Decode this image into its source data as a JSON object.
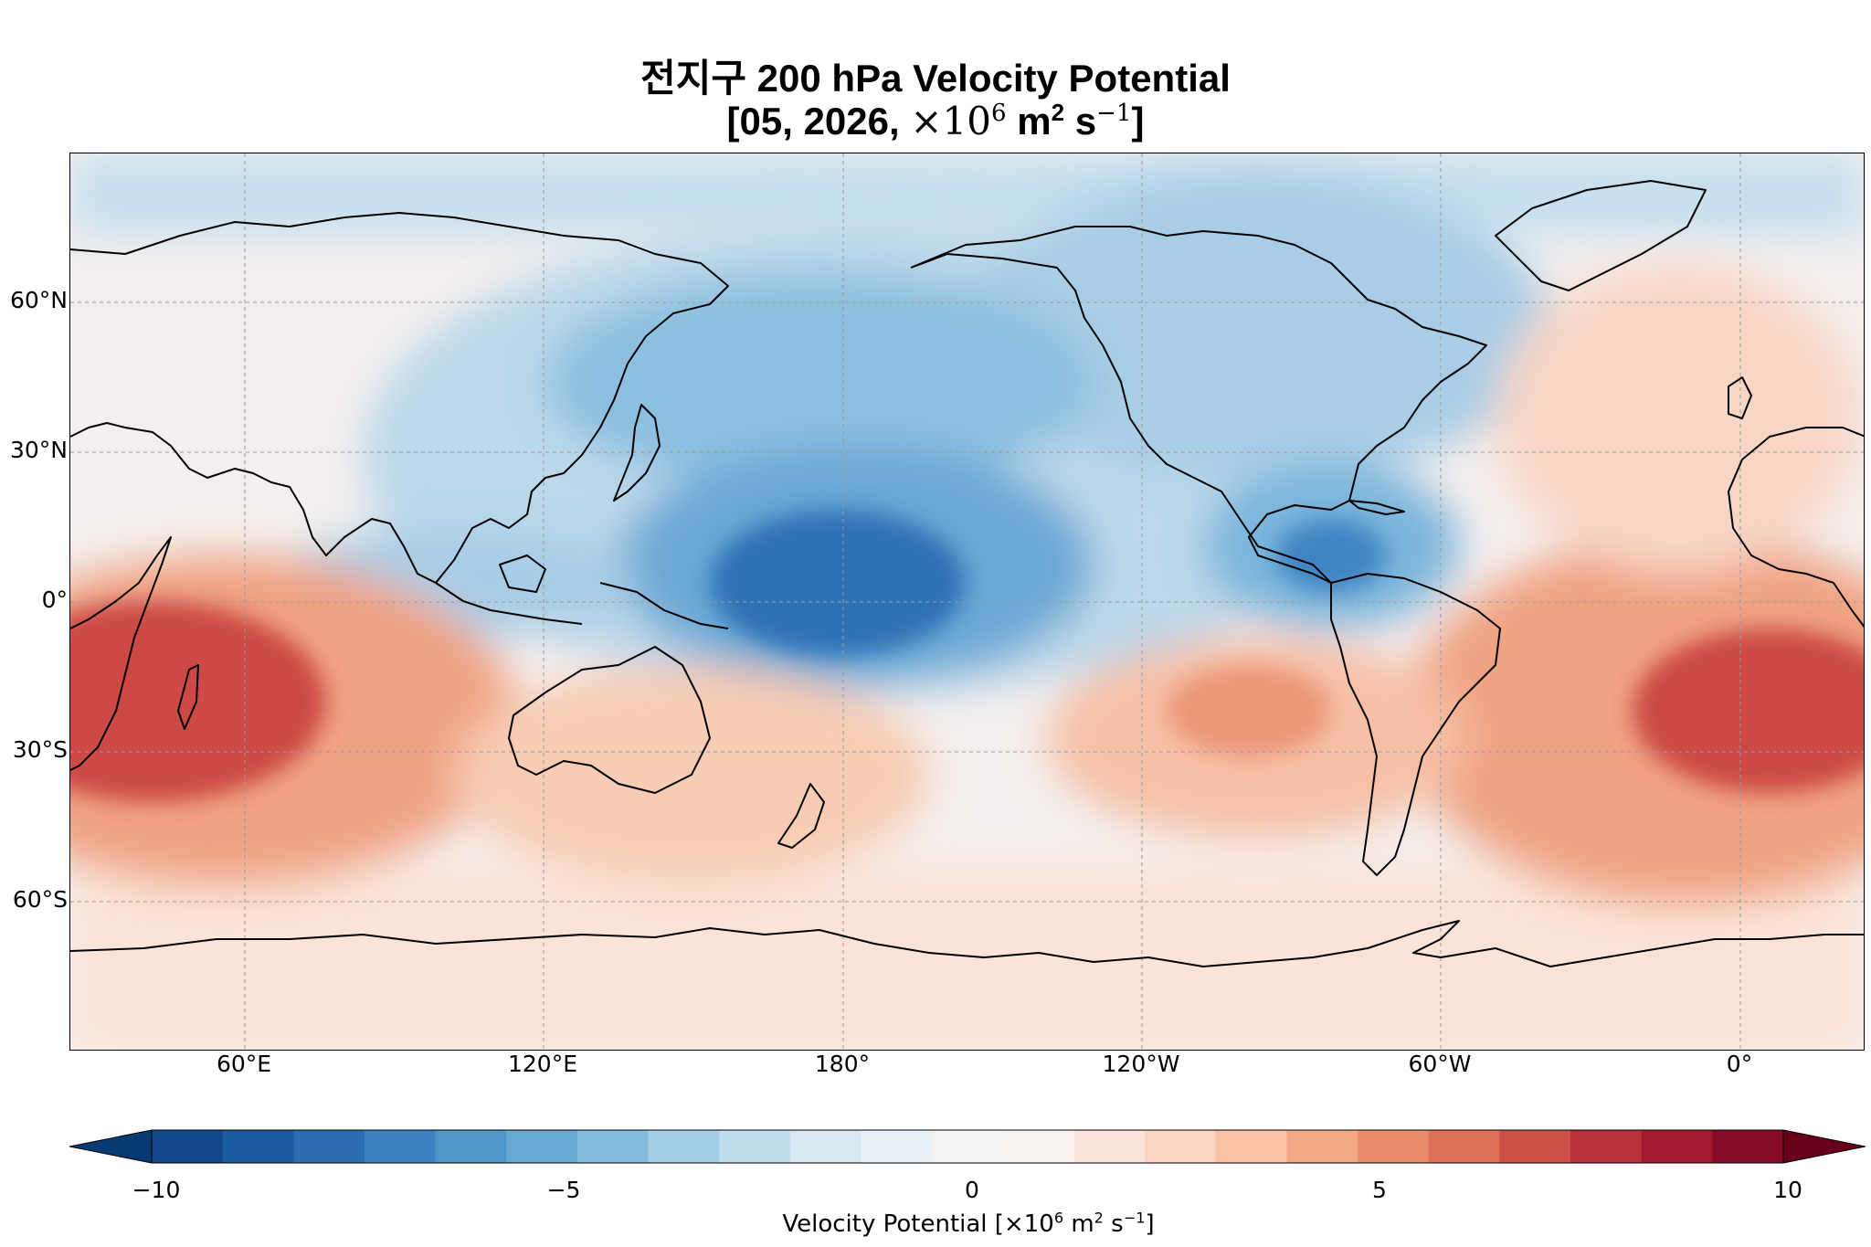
{
  "title": {
    "line1": "전지구 200 hPa Velocity Potential",
    "line2_prefix": "[05, 2026, ",
    "line2_mult": "×10",
    "line2_exp": "6",
    "line2_m": " m",
    "line2_m_exp": "2",
    "line2_s": " s",
    "line2_s_exp": "−1",
    "line2_suffix": "]"
  },
  "map": {
    "latitude_labels": [
      "60°N",
      "30°N",
      "0°",
      "30°S",
      "60°S"
    ],
    "longitude_labels": [
      "60°E",
      "120°E",
      "180°",
      "120°W",
      "60°W",
      "0°"
    ]
  },
  "colorbar": {
    "label_prefix": "Velocity Potential [×10",
    "label_exp": "6",
    "label_m": " m",
    "label_m_exp": "2",
    "label_s": " s",
    "label_s_exp": "−1",
    "label_suffix": "]",
    "ticks": [
      "−10",
      "−5",
      "0",
      "5",
      "10"
    ],
    "min": -10,
    "max": 10,
    "colors": [
      "#083a73",
      "#0f4889",
      "#1c5a9e",
      "#2a6db1",
      "#3a82bd",
      "#4d97c8",
      "#66aad3",
      "#84bce0",
      "#a3cde6",
      "#bfdcec",
      "#d6e8f2",
      "#e7f1f6",
      "#f3f5f5",
      "#f7f1ee",
      "#fbe5da",
      "#fcd5c1",
      "#f8c0a5",
      "#f4a785",
      "#ea8c6b",
      "#de6f56",
      "#cc5047",
      "#b8303a",
      "#a21a2f",
      "#870b24",
      "#68001b"
    ]
  },
  "field_colors": {
    "deep_negative": "#2d6fb4",
    "negative": "#7fb6db",
    "weak_negative": "#c6dfee",
    "neutral": "#f4efee",
    "weak_positive": "#fbd9c6",
    "positive": "#f0a383",
    "strong_positive": "#cc4a44"
  }
}
